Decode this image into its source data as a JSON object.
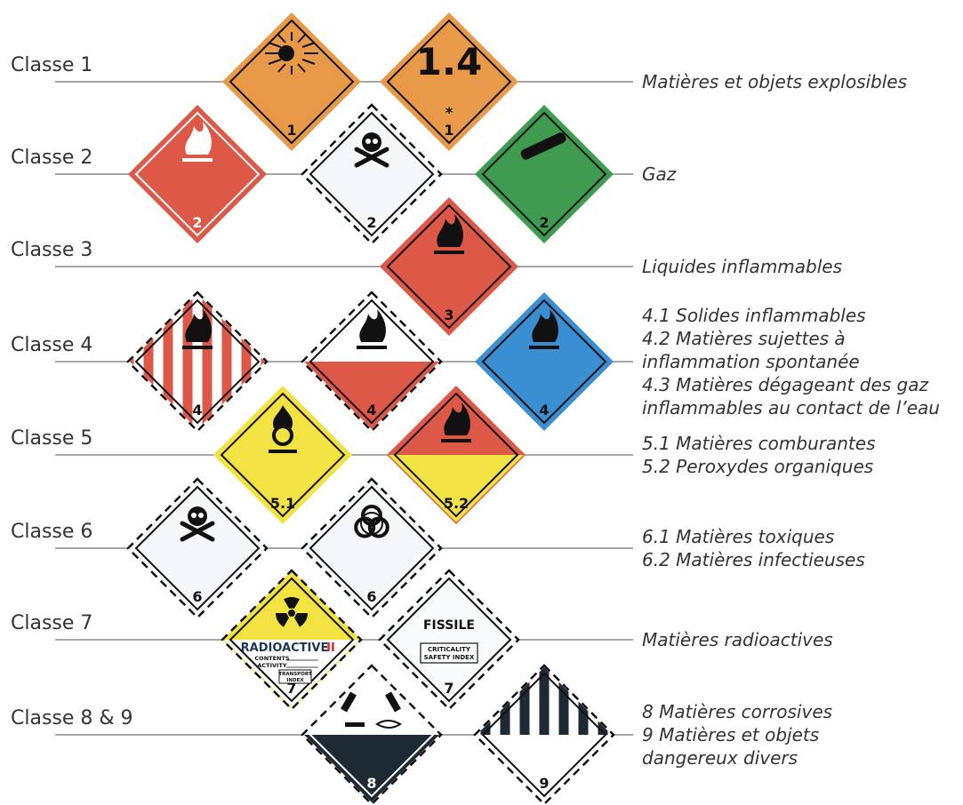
{
  "rows": [
    {
      "label": "Classe 1",
      "description": [
        "Matières et objets explosibles"
      ],
      "placards": [
        {
          "number": "1"
        },
        {
          "heading": "1.4",
          "mark": "*",
          "number": "1"
        }
      ]
    },
    {
      "label": "Classe 2",
      "description": [
        "Gaz"
      ],
      "placards": [
        {
          "number": "2"
        },
        {
          "number": "2"
        },
        {
          "number": "2"
        }
      ]
    },
    {
      "label": "Classe 3",
      "description": [
        "Liquides inflammables"
      ],
      "placards": [
        {
          "number": "3"
        }
      ]
    },
    {
      "label": "Classe 4",
      "description": [
        "4.1 Solides inflammables",
        "4.2 Matières sujettes à",
        "inflammation spontanée",
        "4.3 Matières dégageant des gaz",
        "inflammables au contact de l’eau"
      ],
      "placards": [
        {
          "number": "4"
        },
        {
          "number": "4"
        },
        {
          "number": "4"
        }
      ]
    },
    {
      "label": "Classe 5",
      "description": [
        "5.1 Matières comburantes",
        "5.2 Peroxydes organiques"
      ],
      "placards": [
        {
          "number": "5.1"
        },
        {
          "number": "5.2"
        }
      ]
    },
    {
      "label": "Classe 6",
      "description": [
        "6.1 Matières toxiques",
        "6.2 Matières infectieuses"
      ],
      "placards": [
        {
          "number": "6"
        },
        {
          "number": "6"
        }
      ]
    },
    {
      "label": "Classe 7",
      "description": [
        "Matières radioactives"
      ],
      "placards": [
        {
          "heading": "RADIOACTIVE",
          "category": "II",
          "lines": [
            "CONTENTS",
            "ACTIVITY"
          ],
          "box": [
            "TRANSPORT",
            "INDEX"
          ],
          "number": "7"
        },
        {
          "heading": "FISSILE",
          "box": [
            "CRITICALITY",
            "SAFETY INDEX"
          ],
          "number": "7"
        }
      ]
    },
    {
      "label": "Classe 8 & 9",
      "description": [
        "8 Matières corrosives",
        "9 Matières et objets",
        "dangereux divers"
      ],
      "placards": [
        {
          "number": "8"
        },
        {
          "number": "9"
        }
      ]
    }
  ]
}
